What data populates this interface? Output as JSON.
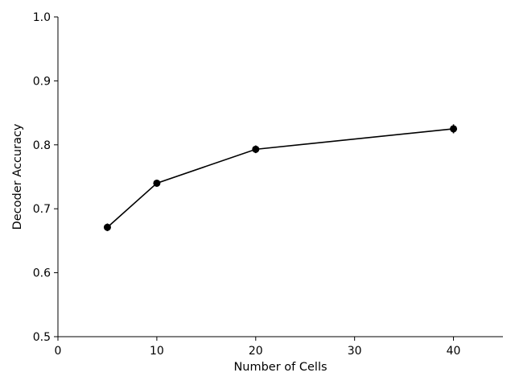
{
  "chart_data": {
    "type": "line",
    "title": "",
    "xlabel": "Number of Cells",
    "ylabel": "Decoder Accuracy",
    "xlim": [
      0,
      45
    ],
    "ylim": [
      0.5,
      1.0
    ],
    "xticks": [
      0,
      10,
      20,
      30,
      40
    ],
    "xtick_labels": [
      "0",
      "10",
      "20",
      "30",
      "40"
    ],
    "yticks": [
      0.5,
      0.6,
      0.7,
      0.8,
      0.9,
      1.0
    ],
    "ytick_labels": [
      "0.5",
      "0.6",
      "0.7",
      "0.8",
      "0.9",
      "1.0"
    ],
    "grid": false,
    "series": [
      {
        "x": [
          5,
          10,
          20,
          40
        ],
        "y": [
          0.671,
          0.74,
          0.793,
          0.825
        ],
        "yerr": [
          0.006,
          0.005,
          0.006,
          0.007
        ],
        "color": "#000000",
        "marker": "circle"
      }
    ]
  }
}
